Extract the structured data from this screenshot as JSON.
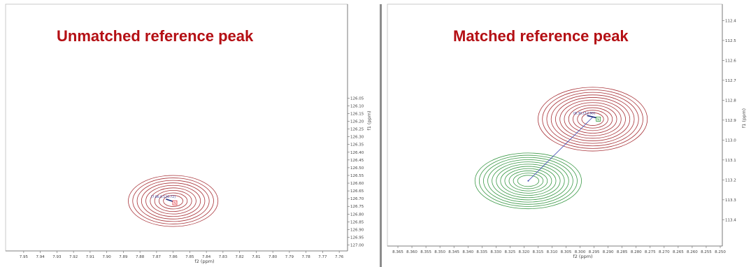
{
  "chart_data": [
    {
      "type": "contour",
      "title": "Unmatched reference peak",
      "xlabel": "f2 (ppm)",
      "ylabel": "f1 (ppm)",
      "x_reversed": true,
      "y_reversed": true,
      "xlim": [
        7.955,
        7.755
      ],
      "ylim": [
        126.035,
        127.02
      ],
      "x_ticks": [
        "7.95",
        "7.94",
        "7.93",
        "7.92",
        "7.91",
        "7.90",
        "7.89",
        "7.88",
        "7.87",
        "7.86",
        "7.85",
        "7.84",
        "7.83",
        "7.82",
        "7.81",
        "7.80",
        "7.79",
        "7.78",
        "7.77",
        "7.76"
      ],
      "y_ticks": [
        "126.05",
        "126.10",
        "126.15",
        "126.20",
        "126.25",
        "126.30",
        "126.35",
        "126.40",
        "126.45",
        "126.50",
        "126.55",
        "126.60",
        "126.65",
        "126.70",
        "126.75",
        "126.80",
        "126.85",
        "126.90",
        "126.95",
        "127.00"
      ],
      "series": [
        {
          "color": "#a83238",
          "center": [
            7.86,
            126.715
          ],
          "rx": 0.027,
          "ry": 0.165,
          "levels": 9
        }
      ],
      "markers": [
        {
          "x": 7.859,
          "y": 126.727,
          "color": "#e0303a",
          "label": "N",
          "matched": false
        }
      ],
      "annotations": [
        {
          "text": "[7.86,0.126.72]",
          "x": 7.866,
          "y": 126.694
        }
      ]
    },
    {
      "type": "contour",
      "title": "Matched reference peak",
      "xlabel": "f2 (ppm)",
      "ylabel": "f1 (ppm)",
      "x_reversed": true,
      "y_reversed": true,
      "xlim": [
        8.367,
        8.248
      ],
      "ylim": [
        112.36,
        113.49
      ],
      "x_ticks": [
        "8.365",
        "8.360",
        "8.355",
        "8.350",
        "8.345",
        "8.340",
        "8.335",
        "8.330",
        "8.325",
        "8.320",
        "8.315",
        "8.310",
        "8.305",
        "8.300",
        "8.295",
        "8.290",
        "8.285",
        "8.280",
        "8.275",
        "8.270",
        "8.265",
        "8.260",
        "8.255",
        "8.250"
      ],
      "y_ticks": [
        "112.4",
        "112.5",
        "112.6",
        "112.7",
        "112.8",
        "112.9",
        "113.0",
        "113.1",
        "113.2",
        "113.3",
        "113.4"
      ],
      "series": [
        {
          "color": "#a83238",
          "center": [
            8.2955,
            112.895
          ],
          "rx": 0.0195,
          "ry": 0.16,
          "levels": 11
        },
        {
          "color": "#3c9a48",
          "center": [
            8.3185,
            113.205
          ],
          "rx": 0.019,
          "ry": 0.14,
          "levels": 11
        }
      ],
      "markers": [
        {
          "x": 8.2935,
          "y": 112.895,
          "color": "#2e9a3c",
          "label": "N",
          "matched": true
        }
      ],
      "annotations": [
        {
          "text": "[8.30,112.90]",
          "x": 8.2985,
          "y": 112.87
        }
      ],
      "links": [
        {
          "from": [
            8.2955,
            112.885
          ],
          "to": [
            8.3185,
            113.205
          ]
        }
      ]
    }
  ]
}
